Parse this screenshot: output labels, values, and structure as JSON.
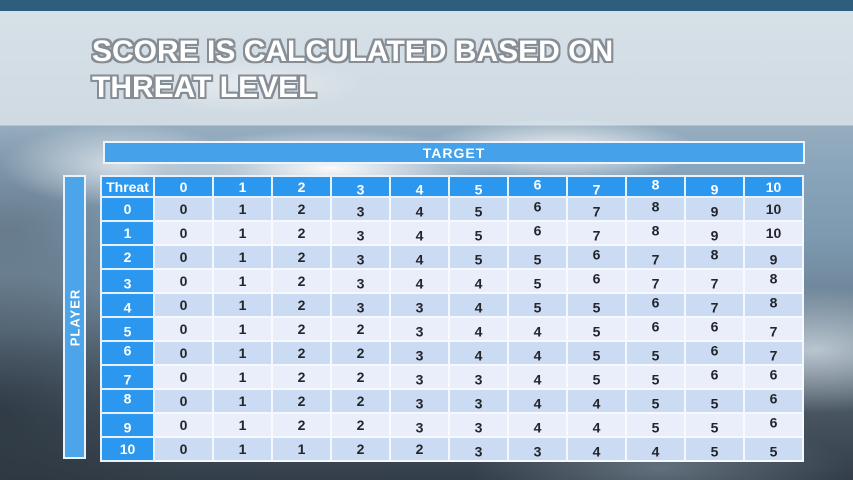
{
  "slide": {
    "title_lines": [
      "SCORE IS CALCULATED BASED ON",
      "THREAT LEVEL"
    ]
  },
  "matrix": {
    "target_label": "TARGET",
    "player_label": "PLAYER",
    "corner_label": "Threat",
    "column_headers": [
      "0",
      "1",
      "2",
      "3",
      "4",
      "5",
      "6",
      "7",
      "8",
      "9",
      "10"
    ],
    "rows": [
      {
        "label": "0",
        "values": [
          0,
          1,
          2,
          3,
          4,
          5,
          6,
          7,
          8,
          9,
          10
        ]
      },
      {
        "label": "1",
        "values": [
          0,
          1,
          2,
          3,
          4,
          5,
          6,
          7,
          8,
          9,
          10
        ]
      },
      {
        "label": "2",
        "values": [
          0,
          1,
          2,
          3,
          4,
          5,
          5,
          6,
          7,
          8,
          9
        ]
      },
      {
        "label": "3",
        "values": [
          0,
          1,
          2,
          3,
          4,
          4,
          5,
          6,
          7,
          7,
          8
        ]
      },
      {
        "label": "4",
        "values": [
          0,
          1,
          2,
          3,
          3,
          4,
          5,
          5,
          6,
          7,
          8
        ]
      },
      {
        "label": "5",
        "values": [
          0,
          1,
          2,
          2,
          3,
          4,
          4,
          5,
          6,
          6,
          7
        ]
      },
      {
        "label": "6",
        "values": [
          0,
          1,
          2,
          2,
          3,
          4,
          4,
          5,
          5,
          6,
          7
        ]
      },
      {
        "label": "7",
        "values": [
          0,
          1,
          2,
          2,
          3,
          3,
          4,
          5,
          5,
          6,
          6
        ]
      },
      {
        "label": "8",
        "values": [
          0,
          1,
          2,
          2,
          3,
          3,
          4,
          4,
          5,
          5,
          6
        ]
      },
      {
        "label": "9",
        "values": [
          0,
          1,
          2,
          2,
          3,
          3,
          4,
          4,
          5,
          5,
          6
        ]
      },
      {
        "label": "10",
        "values": [
          0,
          1,
          1,
          2,
          2,
          3,
          3,
          4,
          4,
          5,
          5
        ]
      }
    ]
  },
  "colors": {
    "header_blue": "#2b97ef",
    "target_bar_blue": "#45a1e9",
    "player_bar_blue": "#4ca4e9",
    "row_dark": "#ccdbf4",
    "row_light": "#e9eefa",
    "body_text": "#23252b",
    "top_strip": "#2d5e7d",
    "title_fill": "#ffffff",
    "title_outline": "#868d94"
  }
}
